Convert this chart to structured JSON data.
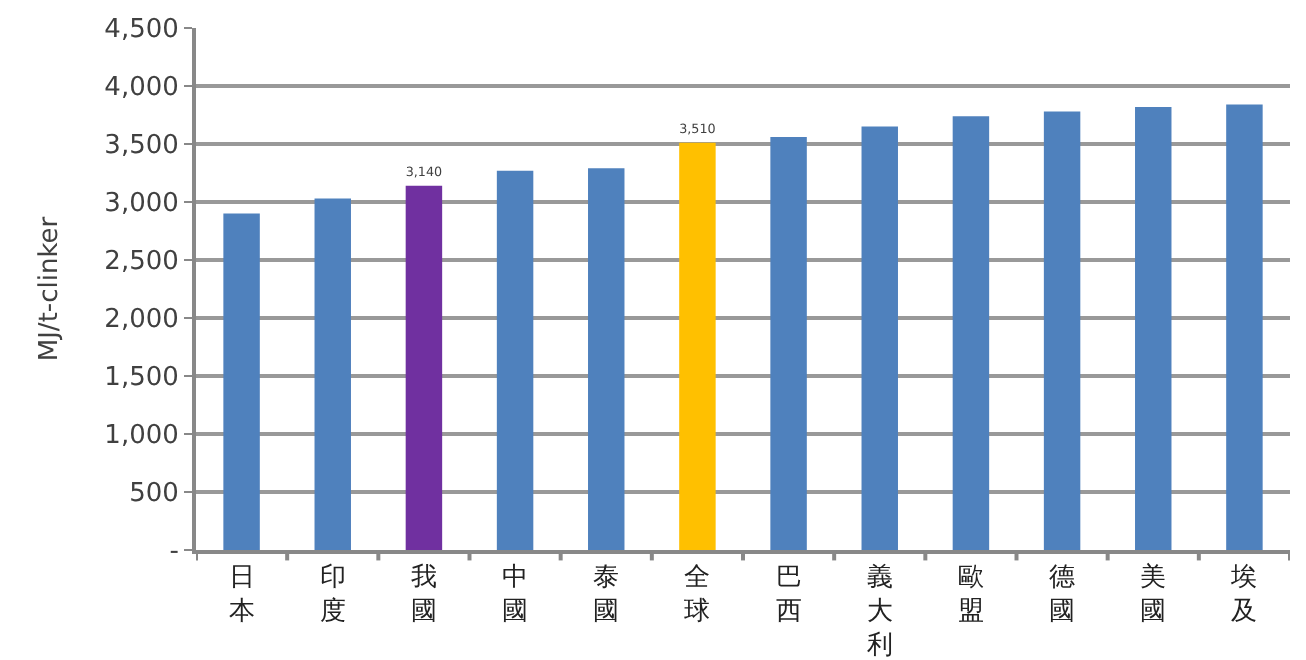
{
  "chart_data": {
    "type": "bar",
    "ylabel": "MJ/t-clinker",
    "categories": [
      "日本",
      "印度",
      "我國",
      "中國",
      "泰國",
      "全球",
      "巴西",
      "義大利",
      "歐盟",
      "德國",
      "美國",
      "埃及"
    ],
    "values": [
      2900,
      3030,
      3140,
      3270,
      3290,
      3510,
      3560,
      3650,
      3740,
      3780,
      3820,
      3840
    ],
    "colors": [
      "#4f81bd",
      "#4f81bd",
      "#7030a0",
      "#4f81bd",
      "#4f81bd",
      "#ffc000",
      "#4f81bd",
      "#4f81bd",
      "#4f81bd",
      "#4f81bd",
      "#4f81bd",
      "#4f81bd"
    ],
    "value_labels": [
      null,
      null,
      "3,140",
      null,
      null,
      "3,510",
      null,
      null,
      null,
      null,
      null,
      null
    ],
    "ylim": [
      0,
      4500
    ],
    "yticks": [
      {
        "value": 0,
        "label": "-"
      },
      {
        "value": 500,
        "label": "500"
      },
      {
        "value": 1000,
        "label": "1,000"
      },
      {
        "value": 1500,
        "label": "1,500"
      },
      {
        "value": 2000,
        "label": "2,000"
      },
      {
        "value": 2500,
        "label": "2,500"
      },
      {
        "value": 3000,
        "label": "3,000"
      },
      {
        "value": 3500,
        "label": "3,500"
      },
      {
        "value": 4000,
        "label": "4,000"
      },
      {
        "value": 4500,
        "label": "4,500"
      }
    ],
    "grid": "y",
    "legend": false
  }
}
